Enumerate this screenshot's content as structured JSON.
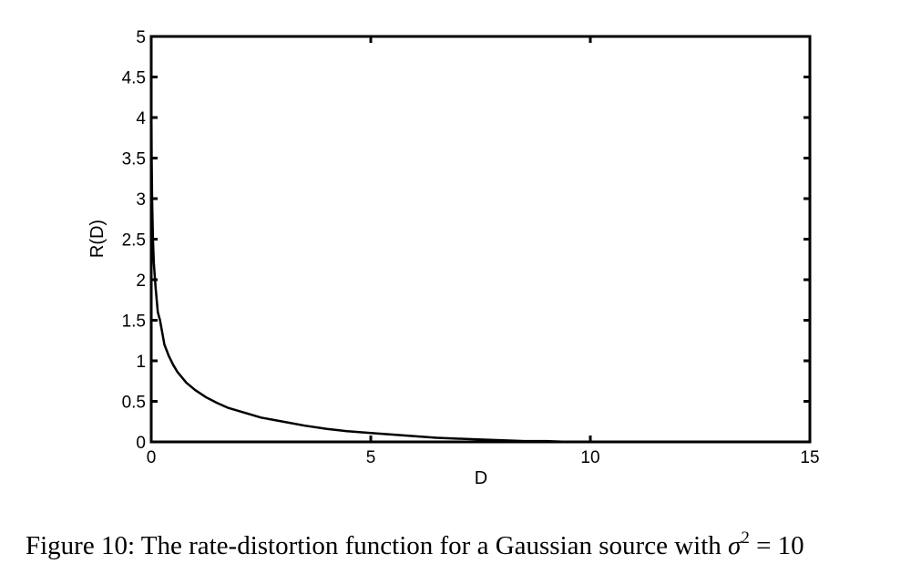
{
  "chart_data": {
    "type": "line",
    "title": "",
    "xlabel": "D",
    "ylabel": "R(D)",
    "xlim": [
      0,
      15
    ],
    "ylim": [
      0,
      5
    ],
    "x_ticks": [
      "0",
      "5",
      "10",
      "15"
    ],
    "y_ticks": [
      "0",
      "0.5",
      "1",
      "1.5",
      "2",
      "2.5",
      "3",
      "3.5",
      "4",
      "4.5",
      "5"
    ],
    "x_tick_values": [
      0,
      5,
      10,
      15
    ],
    "y_tick_values": [
      0,
      0.5,
      1,
      1.5,
      2,
      2.5,
      3,
      3.5,
      4,
      4.5,
      5
    ],
    "grid": false,
    "line_color": "#000000",
    "series": [
      {
        "x": [
          0.0022,
          0.0039,
          0.0098,
          0.02,
          0.039,
          0.06,
          0.1,
          0.15,
          0.2,
          0.3,
          0.4,
          0.5,
          0.6,
          0.8,
          1.0,
          1.25,
          1.5,
          1.75,
          2.0,
          2.5,
          3.0,
          3.5,
          4.0,
          4.5,
          5.0,
          5.5,
          6.0,
          6.5,
          7.0,
          7.5,
          8.0,
          8.5,
          9.0,
          9.5,
          10.0
        ],
        "y": [
          4.5,
          4.1,
          3.5,
          3.0,
          2.5,
          2.2,
          1.9,
          1.6,
          1.5,
          1.2,
          1.06,
          0.95,
          0.86,
          0.73,
          0.64,
          0.55,
          0.48,
          0.42,
          0.38,
          0.3,
          0.25,
          0.2,
          0.16,
          0.13,
          0.11,
          0.09,
          0.07,
          0.05,
          0.04,
          0.03,
          0.02,
          0.01,
          0.01,
          0.0,
          0.0
        ]
      }
    ]
  },
  "caption": {
    "prefix": "Figure 10: The rate-distortion function for a Gaussian source with ",
    "math_var": "σ",
    "math_exp": "2",
    "math_rest": " = 10"
  }
}
